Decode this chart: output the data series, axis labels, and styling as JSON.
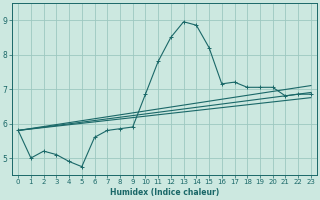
{
  "xlabel": "Humidex (Indice chaleur)",
  "bg_color": "#cce8e0",
  "grid_color": "#9dc8c0",
  "line_color": "#1a6868",
  "xlim": [
    -0.5,
    23.5
  ],
  "ylim": [
    4.5,
    9.5
  ],
  "xticks": [
    0,
    1,
    2,
    3,
    4,
    5,
    6,
    7,
    8,
    9,
    10,
    11,
    12,
    13,
    14,
    15,
    16,
    17,
    18,
    19,
    20,
    21,
    22,
    23
  ],
  "yticks": [
    5,
    6,
    7,
    8,
    9
  ],
  "line1_x": [
    0,
    1,
    2,
    3,
    4,
    5,
    6,
    7,
    8,
    9,
    10,
    11,
    12,
    13,
    14,
    15,
    16,
    17,
    18,
    19,
    20,
    21,
    22,
    23
  ],
  "line1_y": [
    5.8,
    5.0,
    5.2,
    5.1,
    4.9,
    4.75,
    5.6,
    5.8,
    5.85,
    5.9,
    6.85,
    7.8,
    8.5,
    8.95,
    8.85,
    8.2,
    7.15,
    7.2,
    7.05,
    7.05,
    7.05,
    6.8,
    6.85,
    6.85
  ],
  "line2_x": [
    0,
    23
  ],
  "line2_y": [
    5.8,
    6.75
  ],
  "line3_x": [
    0,
    23
  ],
  "line3_y": [
    5.8,
    6.9
  ],
  "line4_x": [
    0,
    23
  ],
  "line4_y": [
    5.8,
    7.1
  ]
}
